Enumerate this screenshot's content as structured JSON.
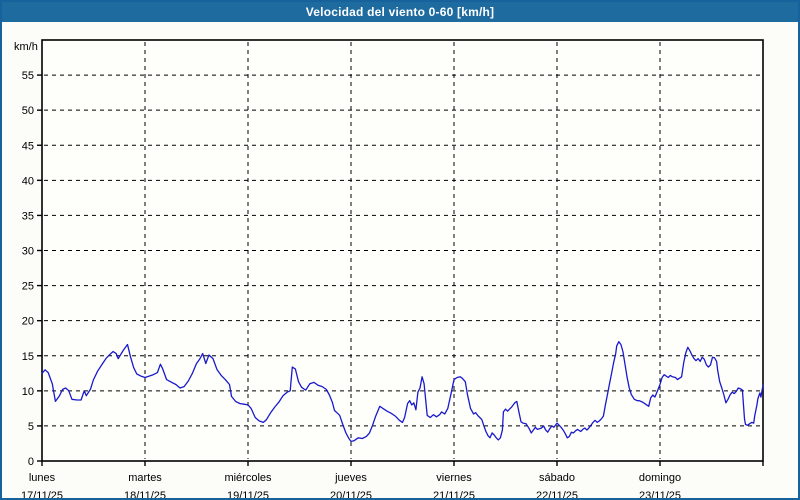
{
  "window": {
    "title": "Velocidad del viento 0-60 [km/h]"
  },
  "colors": {
    "titlebar_bg": "#1d6b9f",
    "frame_border": "#17629c",
    "page_bg": "#fcfdf8",
    "plot_bg": "#fefefb",
    "axis": "#000000",
    "grid": "#000000",
    "line": "#1a1acd"
  },
  "chart_data": {
    "type": "line",
    "title": "Velocidad del viento 0-60 [km/h]",
    "ylabel": "km/h",
    "xlabel": "",
    "ylim": [
      0,
      60
    ],
    "ytick_interval": 5,
    "ytick_label_max": 55,
    "grid": "dashed",
    "legend_position": "none",
    "x_axis_days": [
      {
        "name": "lunes",
        "date": "17/11/25"
      },
      {
        "name": "martes",
        "date": "18/11/25"
      },
      {
        "name": "miércoles",
        "date": "19/11/25"
      },
      {
        "name": "jueves",
        "date": "20/11/25"
      },
      {
        "name": "viernes",
        "date": "21/11/25"
      },
      {
        "name": "sábado",
        "date": "22/11/25"
      },
      {
        "name": "domingo",
        "date": "23/11/25"
      }
    ],
    "series": [
      {
        "name": "Velocidad del viento",
        "unit": "km/h",
        "color": "#1a1acd",
        "x_unit": "days_from_start",
        "points": [
          [
            0.0,
            12.5
          ],
          [
            0.03,
            13.0
          ],
          [
            0.06,
            12.6
          ],
          [
            0.1,
            11.0
          ],
          [
            0.13,
            8.5
          ],
          [
            0.17,
            9.3
          ],
          [
            0.2,
            10.2
          ],
          [
            0.23,
            10.4
          ],
          [
            0.26,
            10.0
          ],
          [
            0.29,
            8.8
          ],
          [
            0.34,
            8.7
          ],
          [
            0.38,
            8.7
          ],
          [
            0.41,
            10.0
          ],
          [
            0.43,
            9.3
          ],
          [
            0.47,
            10.2
          ],
          [
            0.5,
            11.6
          ],
          [
            0.54,
            12.8
          ],
          [
            0.58,
            13.7
          ],
          [
            0.62,
            14.6
          ],
          [
            0.66,
            15.2
          ],
          [
            0.69,
            15.6
          ],
          [
            0.72,
            15.3
          ],
          [
            0.74,
            14.6
          ],
          [
            0.79,
            15.8
          ],
          [
            0.83,
            16.6
          ],
          [
            0.86,
            14.8
          ],
          [
            0.89,
            13.3
          ],
          [
            0.92,
            12.4
          ],
          [
            0.96,
            12.1
          ],
          [
            1.0,
            11.9
          ],
          [
            1.04,
            12.1
          ],
          [
            1.08,
            12.3
          ],
          [
            1.12,
            12.6
          ],
          [
            1.15,
            13.8
          ],
          [
            1.17,
            13.2
          ],
          [
            1.21,
            11.6
          ],
          [
            1.26,
            11.2
          ],
          [
            1.3,
            10.9
          ],
          [
            1.34,
            10.4
          ],
          [
            1.38,
            10.6
          ],
          [
            1.42,
            11.4
          ],
          [
            1.46,
            12.5
          ],
          [
            1.5,
            13.9
          ],
          [
            1.53,
            14.5
          ],
          [
            1.56,
            15.3
          ],
          [
            1.59,
            13.9
          ],
          [
            1.62,
            15.1
          ],
          [
            1.66,
            14.6
          ],
          [
            1.7,
            13.0
          ],
          [
            1.74,
            12.2
          ],
          [
            1.78,
            11.6
          ],
          [
            1.82,
            10.9
          ],
          [
            1.84,
            9.2
          ],
          [
            1.88,
            8.5
          ],
          [
            1.92,
            8.2
          ],
          [
            1.96,
            8.1
          ],
          [
            2.0,
            8.0
          ],
          [
            2.03,
            7.5
          ],
          [
            2.07,
            6.2
          ],
          [
            2.11,
            5.7
          ],
          [
            2.15,
            5.5
          ],
          [
            2.18,
            5.9
          ],
          [
            2.22,
            6.9
          ],
          [
            2.26,
            7.7
          ],
          [
            2.3,
            8.4
          ],
          [
            2.34,
            9.3
          ],
          [
            2.38,
            9.8
          ],
          [
            2.41,
            10.0
          ],
          [
            2.43,
            13.4
          ],
          [
            2.46,
            13.1
          ],
          [
            2.49,
            11.3
          ],
          [
            2.52,
            10.5
          ],
          [
            2.56,
            10.1
          ],
          [
            2.6,
            11.0
          ],
          [
            2.64,
            11.2
          ],
          [
            2.68,
            10.8
          ],
          [
            2.72,
            10.6
          ],
          [
            2.76,
            10.2
          ],
          [
            2.79,
            9.4
          ],
          [
            2.82,
            8.3
          ],
          [
            2.84,
            7.2
          ],
          [
            2.87,
            6.8
          ],
          [
            2.89,
            6.5
          ],
          [
            2.92,
            5.2
          ],
          [
            2.95,
            4.0
          ],
          [
            2.98,
            3.2
          ],
          [
            3.0,
            2.8
          ],
          [
            3.03,
            2.9
          ],
          [
            3.07,
            3.3
          ],
          [
            3.11,
            3.2
          ],
          [
            3.15,
            3.5
          ],
          [
            3.18,
            4.0
          ],
          [
            3.21,
            5.1
          ],
          [
            3.24,
            6.4
          ],
          [
            3.28,
            7.8
          ],
          [
            3.31,
            7.5
          ],
          [
            3.35,
            7.1
          ],
          [
            3.39,
            6.8
          ],
          [
            3.43,
            6.4
          ],
          [
            3.47,
            5.8
          ],
          [
            3.5,
            5.5
          ],
          [
            3.52,
            6.2
          ],
          [
            3.55,
            8.2
          ],
          [
            3.57,
            8.6
          ],
          [
            3.59,
            8.0
          ],
          [
            3.61,
            8.3
          ],
          [
            3.63,
            7.3
          ],
          [
            3.65,
            9.8
          ],
          [
            3.67,
            10.4
          ],
          [
            3.69,
            12.0
          ],
          [
            3.71,
            11.0
          ],
          [
            3.74,
            6.5
          ],
          [
            3.77,
            6.2
          ],
          [
            3.8,
            6.6
          ],
          [
            3.83,
            6.3
          ],
          [
            3.86,
            6.6
          ],
          [
            3.88,
            7.0
          ],
          [
            3.91,
            6.7
          ],
          [
            3.94,
            7.5
          ],
          [
            3.97,
            9.5
          ],
          [
            4.0,
            11.6
          ],
          [
            4.03,
            11.9
          ],
          [
            4.06,
            12.0
          ],
          [
            4.08,
            11.8
          ],
          [
            4.11,
            11.3
          ],
          [
            4.13,
            9.5
          ],
          [
            4.16,
            7.5
          ],
          [
            4.19,
            6.7
          ],
          [
            4.21,
            6.9
          ],
          [
            4.23,
            6.5
          ],
          [
            4.25,
            6.2
          ],
          [
            4.27,
            5.9
          ],
          [
            4.29,
            5.0
          ],
          [
            4.31,
            4.2
          ],
          [
            4.33,
            3.6
          ],
          [
            4.35,
            3.3
          ],
          [
            4.37,
            4.0
          ],
          [
            4.39,
            3.7
          ],
          [
            4.41,
            3.3
          ],
          [
            4.43,
            3.0
          ],
          [
            4.45,
            3.3
          ],
          [
            4.47,
            4.4
          ],
          [
            4.48,
            7.0
          ],
          [
            4.5,
            7.4
          ],
          [
            4.52,
            7.1
          ],
          [
            4.54,
            7.4
          ],
          [
            4.56,
            7.7
          ],
          [
            4.59,
            8.3
          ],
          [
            4.61,
            8.5
          ],
          [
            4.63,
            7.0
          ],
          [
            4.65,
            5.6
          ],
          [
            4.67,
            5.4
          ],
          [
            4.7,
            5.3
          ],
          [
            4.73,
            4.6
          ],
          [
            4.75,
            4.0
          ],
          [
            4.77,
            4.4
          ],
          [
            4.79,
            4.8
          ],
          [
            4.81,
            4.5
          ],
          [
            4.83,
            4.6
          ],
          [
            4.85,
            4.7
          ],
          [
            4.87,
            5.0
          ],
          [
            4.89,
            4.4
          ],
          [
            4.91,
            4.1
          ],
          [
            4.93,
            4.6
          ],
          [
            4.95,
            5.0
          ],
          [
            4.97,
            4.8
          ],
          [
            5.0,
            5.4
          ],
          [
            5.02,
            5.1
          ],
          [
            5.04,
            4.8
          ],
          [
            5.06,
            4.4
          ],
          [
            5.08,
            3.9
          ],
          [
            5.1,
            3.3
          ],
          [
            5.12,
            3.5
          ],
          [
            5.14,
            4.1
          ],
          [
            5.16,
            4.0
          ],
          [
            5.18,
            4.3
          ],
          [
            5.2,
            4.5
          ],
          [
            5.23,
            4.2
          ],
          [
            5.25,
            4.5
          ],
          [
            5.27,
            4.7
          ],
          [
            5.29,
            4.4
          ],
          [
            5.31,
            4.7
          ],
          [
            5.33,
            5.1
          ],
          [
            5.35,
            5.5
          ],
          [
            5.37,
            5.8
          ],
          [
            5.39,
            5.5
          ],
          [
            5.41,
            5.7
          ],
          [
            5.43,
            6.0
          ],
          [
            5.45,
            6.4
          ],
          [
            5.47,
            8.0
          ],
          [
            5.49,
            9.5
          ],
          [
            5.51,
            11.0
          ],
          [
            5.53,
            12.5
          ],
          [
            5.55,
            14.0
          ],
          [
            5.57,
            15.3
          ],
          [
            5.58,
            16.4
          ],
          [
            5.6,
            17.0
          ],
          [
            5.62,
            16.6
          ],
          [
            5.64,
            15.6
          ],
          [
            5.66,
            13.8
          ],
          [
            5.68,
            12.0
          ],
          [
            5.7,
            10.5
          ],
          [
            5.72,
            9.5
          ],
          [
            5.75,
            8.8
          ],
          [
            5.78,
            8.6
          ],
          [
            5.8,
            8.6
          ],
          [
            5.83,
            8.4
          ],
          [
            5.86,
            8.1
          ],
          [
            5.89,
            7.8
          ],
          [
            5.91,
            9.0
          ],
          [
            5.93,
            9.4
          ],
          [
            5.95,
            9.1
          ],
          [
            5.97,
            9.8
          ],
          [
            6.0,
            10.9
          ],
          [
            6.02,
            11.9
          ],
          [
            6.04,
            12.3
          ],
          [
            6.06,
            12.1
          ],
          [
            6.08,
            11.9
          ],
          [
            6.1,
            12.2
          ],
          [
            6.12,
            12.0
          ],
          [
            6.15,
            11.9
          ],
          [
            6.17,
            11.6
          ],
          [
            6.19,
            11.8
          ],
          [
            6.21,
            12.0
          ],
          [
            6.23,
            14.0
          ],
          [
            6.25,
            15.4
          ],
          [
            6.27,
            16.2
          ],
          [
            6.29,
            15.7
          ],
          [
            6.31,
            15.1
          ],
          [
            6.33,
            14.6
          ],
          [
            6.35,
            14.3
          ],
          [
            6.37,
            14.6
          ],
          [
            6.39,
            14.2
          ],
          [
            6.41,
            14.8
          ],
          [
            6.43,
            14.5
          ],
          [
            6.45,
            13.7
          ],
          [
            6.47,
            13.4
          ],
          [
            6.49,
            13.7
          ],
          [
            6.51,
            14.8
          ],
          [
            6.53,
            14.7
          ],
          [
            6.55,
            14.2
          ],
          [
            6.56,
            12.9
          ],
          [
            6.58,
            11.3
          ],
          [
            6.6,
            10.4
          ],
          [
            6.62,
            9.4
          ],
          [
            6.64,
            8.3
          ],
          [
            6.66,
            8.8
          ],
          [
            6.68,
            9.4
          ],
          [
            6.7,
            9.8
          ],
          [
            6.72,
            9.6
          ],
          [
            6.74,
            9.9
          ],
          [
            6.76,
            10.4
          ],
          [
            6.78,
            10.3
          ],
          [
            6.8,
            10.1
          ],
          [
            6.82,
            6.0
          ],
          [
            6.83,
            5.2
          ],
          [
            6.85,
            5.1
          ],
          [
            6.87,
            5.3
          ],
          [
            6.89,
            5.5
          ],
          [
            6.91,
            5.4
          ],
          [
            6.92,
            6.5
          ],
          [
            6.94,
            7.9
          ],
          [
            6.95,
            8.9
          ],
          [
            6.97,
            9.7
          ],
          [
            6.98,
            9.1
          ],
          [
            7.0,
            10.8
          ]
        ]
      }
    ]
  }
}
